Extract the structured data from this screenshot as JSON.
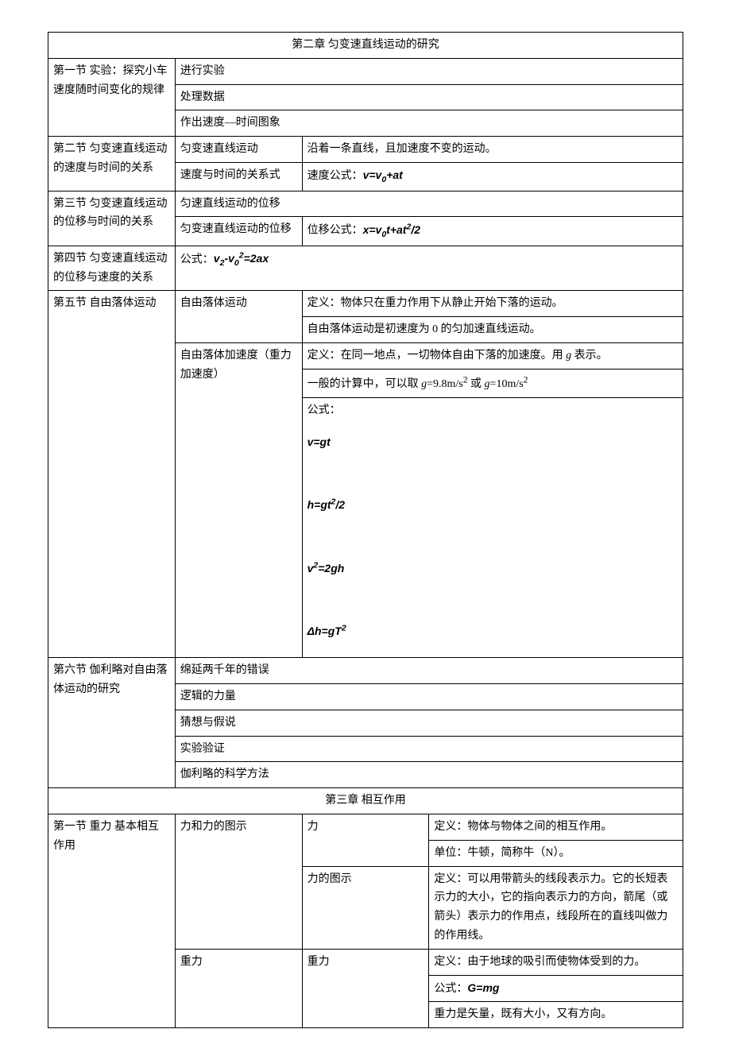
{
  "chapter2": {
    "title": "第二章 匀变速直线运动的研究",
    "section1": {
      "label": "第一节 实验：探究小车速度随时间变化的规律",
      "items": [
        "进行实验",
        "处理数据",
        "作出速度—时间图象"
      ]
    },
    "section2": {
      "label": "第二节 匀变速直线运动的速度与时间的关系",
      "row1": {
        "col2": "匀变速直线运动",
        "col3": "沿着一条直线，且加速度不变的运动。"
      },
      "row2": {
        "col2": "速度与时间的关系式",
        "col3_prefix": "速度公式：",
        "formula": "v=v₀+at"
      }
    },
    "section3": {
      "label": "第三节 匀变速直线运动的位移与时间的关系",
      "row1": {
        "col2": "匀速直线运动的位移"
      },
      "row2": {
        "col2": "匀变速直线运动的位移",
        "col3_prefix": "位移公式：",
        "formula": "x=v₀t+at²/2"
      }
    },
    "section4": {
      "label": "第四节 匀变速直线运动的位移与速度的关系",
      "prefix": "公式：",
      "formula": "v₂-v₀²=2ax"
    },
    "section5": {
      "label": "第五节 自由落体运动",
      "row1": {
        "col2": "自由落体运动",
        "col3": "定义：物体只在重力作用下从静止开始下落的运动。"
      },
      "row2": {
        "col3": "自由落体运动是初速度为 0 的匀加速直线运动。"
      },
      "row3": {
        "col2": "自由落体加速度（重力加速度）",
        "col3": "定义：在同一地点，一切物体自由下落的加速度。用 g 表示。"
      },
      "row4": {
        "col3_prefix": "一般的计算中，可以取 ",
        "col3_mid": "=9.8m/s",
        "col3_or": " 或 ",
        "col3_end": "=10m/s"
      },
      "row5": {
        "prefix": "公式：",
        "f1": "v=gt",
        "f2": "h=gt²/2",
        "f3": "v²=2gh",
        "f4": "Δh=gT²"
      }
    },
    "section6": {
      "label": "第六节 伽利略对自由落体运动的研究",
      "items": [
        "绵延两千年的错误",
        "逻辑的力量",
        "猜想与假说",
        "实验验证",
        "伽利略的科学方法"
      ]
    }
  },
  "chapter3": {
    "title": "第三章 相互作用",
    "section1": {
      "label": "第一节 重力 基本相互作用",
      "row1": {
        "col2": "力和力的图示",
        "col3": "力",
        "col4": "定义：物体与物体之间的相互作用。"
      },
      "row2": {
        "col4": "单位：牛顿，简称牛（N）。"
      },
      "row3": {
        "col3": "力的图示",
        "col4": "定义：可以用带箭头的线段表示力。它的长短表示力的大小，它的指向表示力的方向，箭尾（或箭头）表示力的作用点，线段所在的直线叫做力的作用线。"
      },
      "row4": {
        "col2": "重力",
        "col3": "重力",
        "col4": "定义：由于地球的吸引而使物体受到的力。"
      },
      "row5": {
        "col4_prefix": "公式：",
        "formula": "G=mg"
      },
      "row6": {
        "col4": "重力是矢量，既有大小，又有方向。"
      }
    }
  }
}
